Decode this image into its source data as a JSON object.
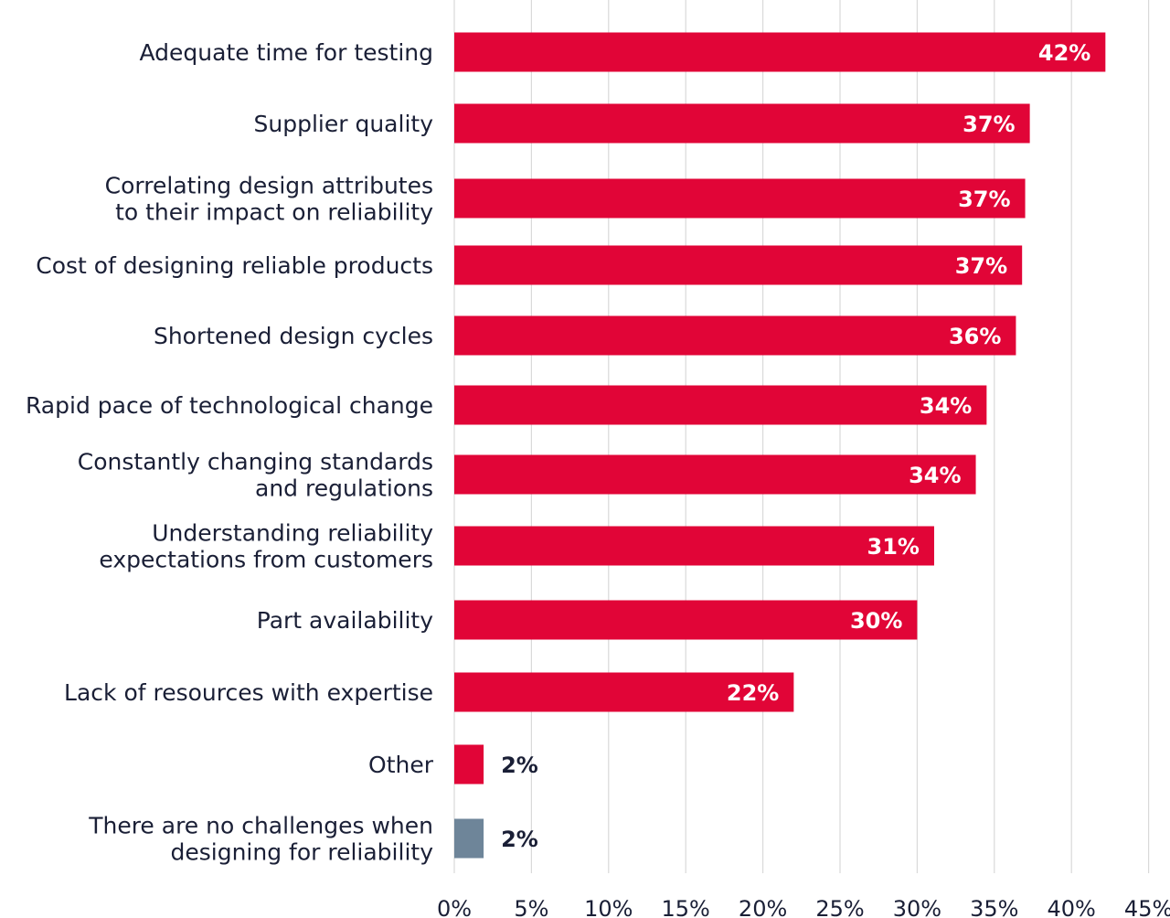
{
  "chart_data": {
    "type": "bar",
    "orientation": "horizontal",
    "title": "",
    "xlabel": "",
    "ylabel": "",
    "xlim": [
      0,
      45
    ],
    "grid": true,
    "x_ticks": [
      0,
      5,
      10,
      15,
      20,
      25,
      30,
      35,
      40,
      45
    ],
    "x_tick_labels": [
      "0%",
      "5%",
      "10%",
      "15%",
      "20%",
      "25%",
      "30%",
      "35%",
      "40%",
      "45%"
    ],
    "colors": {
      "primary": "#e10537",
      "secondary": "#6e8599",
      "inside_label": "#ffffff",
      "outside_label": "#1a1f36"
    },
    "categories": [
      {
        "label": [
          "Adequate time for testing"
        ],
        "value": 42.2,
        "value_label": "42%",
        "color": "primary"
      },
      {
        "label": [
          "Supplier quality"
        ],
        "value": 37.3,
        "value_label": "37%",
        "color": "primary"
      },
      {
        "label": [
          "Correlating design attributes",
          "to their impact on reliability"
        ],
        "value": 37.0,
        "value_label": "37%",
        "color": "primary"
      },
      {
        "label": [
          "Cost of designing reliable products"
        ],
        "value": 36.8,
        "value_label": "37%",
        "color": "primary"
      },
      {
        "label": [
          "Shortened design cycles"
        ],
        "value": 36.4,
        "value_label": "36%",
        "color": "primary"
      },
      {
        "label": [
          "Rapid pace of technological change"
        ],
        "value": 34.5,
        "value_label": "34%",
        "color": "primary"
      },
      {
        "label": [
          "Constantly changing standards",
          "and regulations"
        ],
        "value": 33.8,
        "value_label": "34%",
        "color": "primary"
      },
      {
        "label": [
          "Understanding reliability",
          "expectations from customers"
        ],
        "value": 31.1,
        "value_label": "31%",
        "color": "primary"
      },
      {
        "label": [
          "Part availability"
        ],
        "value": 30.0,
        "value_label": "30%",
        "color": "primary"
      },
      {
        "label": [
          "Lack of resources with expertise"
        ],
        "value": 22.0,
        "value_label": "22%",
        "color": "primary"
      },
      {
        "label": [
          "Other"
        ],
        "value": 1.9,
        "value_label": "2%",
        "color": "primary"
      },
      {
        "label": [
          "There are no challenges when",
          "designing for reliability"
        ],
        "value": 1.9,
        "value_label": "2%",
        "color": "secondary"
      }
    ]
  }
}
